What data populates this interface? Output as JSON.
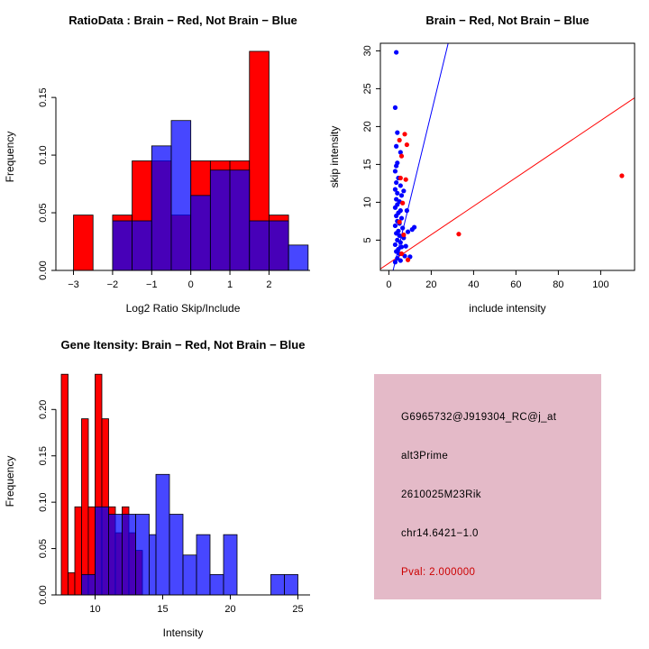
{
  "figure": {
    "background": "#ffffff"
  },
  "colors": {
    "brain_red": "#ff0000",
    "not_brain_blue": "#0000ff",
    "overlap_purple": "#66009f",
    "axis": "#000000"
  },
  "chart_data": [
    {
      "id": "ratio_hist",
      "type": "bar",
      "title": "RatioData : Brain − Red, Not Brain − Blue",
      "xlabel": "Log2 Ratio Skip/Include",
      "ylabel": "Frequency",
      "xlim": [
        -3.45,
        3.05
      ],
      "ylim": [
        0,
        0.197
      ],
      "x_ticks": [
        -3,
        -2,
        -1,
        0,
        1,
        2
      ],
      "x_tick_labels": [
        "−3",
        "−2",
        "−1",
        "0",
        "1",
        "2"
      ],
      "y_ticks": [
        0,
        0.05,
        0.1,
        0.15
      ],
      "y_tick_labels": [
        "0.00",
        "0.05",
        "0.10",
        "0.15"
      ],
      "bin_width": 0.5,
      "series": [
        {
          "name": "Brain (red)",
          "slug": "brain-red-bars",
          "color": "#ff0000",
          "opacity": 1,
          "bins": [
            [
              -3,
              0.048
            ],
            [
              -2,
              0.048
            ],
            [
              -1.5,
              0.095
            ],
            [
              -1,
              0.095
            ],
            [
              -0.5,
              0.048
            ],
            [
              0,
              0.095
            ],
            [
              0.5,
              0.095
            ],
            [
              1,
              0.095
            ],
            [
              1.5,
              0.19
            ],
            [
              2,
              0.048
            ]
          ]
        },
        {
          "name": "Not Brain (blue)",
          "slug": "not-brain-blue-bars",
          "color": "#0000ff",
          "opacity": 0.72,
          "bins": [
            [
              -2,
              0.043
            ],
            [
              -1.5,
              0.043
            ],
            [
              -1,
              0.108
            ],
            [
              -0.5,
              0.13
            ],
            [
              0,
              0.065
            ],
            [
              0.5,
              0.087
            ],
            [
              1,
              0.087
            ],
            [
              1.5,
              0.043
            ],
            [
              2,
              0.043
            ],
            [
              2.5,
              0.022
            ]
          ]
        }
      ]
    },
    {
      "id": "intensity_scatter",
      "type": "scatter",
      "title": "Brain − Red, Not Brain − Blue",
      "xlabel": "include intensity",
      "ylabel": "skip intensity",
      "xlim": [
        -4,
        116
      ],
      "ylim": [
        1,
        31
      ],
      "x_ticks": [
        0,
        20,
        40,
        60,
        80,
        100
      ],
      "x_tick_labels": [
        "0",
        "20",
        "40",
        "60",
        "80",
        "100"
      ],
      "y_ticks": [
        5,
        10,
        15,
        20,
        25,
        30
      ],
      "y_tick_labels": [
        "5",
        "10",
        "15",
        "20",
        "25",
        "30"
      ],
      "lines": [
        {
          "name": "blue-fit-line",
          "color": "#0000ff",
          "from": [
            2,
            1
          ],
          "to": [
            28,
            31
          ]
        },
        {
          "name": "red-fit-line",
          "color": "#ff0000",
          "from": [
            -4,
            1.2
          ],
          "to": [
            116,
            23.8
          ]
        }
      ],
      "series": [
        {
          "name": "Not Brain (blue)",
          "slug": "not-brain-blue-points",
          "color": "#0000ff",
          "points": [
            [
              3.5,
              29.8
            ],
            [
              3,
              22.5
            ],
            [
              4,
              19.2
            ],
            [
              3.5,
              17.4
            ],
            [
              5.5,
              16.6
            ],
            [
              4,
              15.2
            ],
            [
              3.5,
              14.8
            ],
            [
              3,
              14.1
            ],
            [
              4.5,
              13.2
            ],
            [
              3.5,
              12.6
            ],
            [
              5.5,
              12.2
            ],
            [
              3,
              11.7
            ],
            [
              4,
              11.2
            ],
            [
              6,
              10.9
            ],
            [
              3.5,
              10.4
            ],
            [
              5,
              10.1
            ],
            [
              4,
              9.7
            ],
            [
              3,
              9.3
            ],
            [
              5.5,
              8.9
            ],
            [
              4.5,
              8.6
            ],
            [
              3.5,
              8.2
            ],
            [
              6,
              7.9
            ],
            [
              4,
              7.5
            ],
            [
              5,
              7.2
            ],
            [
              3,
              6.9
            ],
            [
              6.5,
              6.6
            ],
            [
              4.5,
              6.2
            ],
            [
              3.5,
              5.9
            ],
            [
              5,
              5.6
            ],
            [
              7,
              5.3
            ],
            [
              4,
              5
            ],
            [
              5.5,
              4.7
            ],
            [
              3,
              4.4
            ],
            [
              6,
              4.1
            ],
            [
              4.5,
              3.8
            ],
            [
              3.5,
              3.5
            ],
            [
              5,
              3.2
            ],
            [
              7.5,
              2.9
            ],
            [
              4,
              2.6
            ],
            [
              5.5,
              2.3
            ],
            [
              3,
              2.1
            ],
            [
              9,
              6.1
            ],
            [
              11,
              6.4
            ],
            [
              8,
              4.2
            ],
            [
              10,
              2.8
            ],
            [
              12,
              6.7
            ],
            [
              8.5,
              8.9
            ],
            [
              7,
              11.5
            ]
          ]
        },
        {
          "name": "Brain (red)",
          "slug": "brain-red-points",
          "color": "#ff0000",
          "points": [
            [
              5,
              18.2
            ],
            [
              7.5,
              19
            ],
            [
              8.5,
              17.6
            ],
            [
              6,
              16.1
            ],
            [
              5.5,
              13.2
            ],
            [
              8,
              13
            ],
            [
              6.5,
              9.9
            ],
            [
              5,
              7.4
            ],
            [
              7,
              5.7
            ],
            [
              6,
              3.2
            ],
            [
              9,
              2.4
            ],
            [
              33,
              5.8
            ],
            [
              110,
              13.5
            ]
          ]
        }
      ]
    },
    {
      "id": "gene_intensity_hist",
      "type": "bar",
      "title": "Gene Itensity: Brain − Red, Not Brain − Blue",
      "xlabel": "Intensity",
      "ylabel": "Frequency",
      "xlim": [
        7.1,
        25.9
      ],
      "ylim": [
        0,
        0.245
      ],
      "x_ticks": [
        10,
        15,
        20,
        25
      ],
      "x_tick_labels": [
        "10",
        "15",
        "20",
        "25"
      ],
      "y_ticks": [
        0,
        0.05,
        0.1,
        0.15,
        0.2
      ],
      "y_tick_labels": [
        "0.00",
        "0.05",
        "0.10",
        "0.15",
        "0.20"
      ],
      "bin_width": 0.5,
      "series": [
        {
          "name": "Brain (red)",
          "slug": "brain-red-bars",
          "color": "#ff0000",
          "opacity": 1,
          "bins": [
            [
              7.5,
              0.238
            ],
            [
              8,
              0.024
            ],
            [
              8.5,
              0.095
            ],
            [
              9,
              0.19
            ],
            [
              9.5,
              0.095
            ],
            [
              10,
              0.238
            ],
            [
              10.5,
              0.19
            ],
            [
              11,
              0.095
            ],
            [
              11.5,
              0.067
            ],
            [
              12,
              0.095
            ],
            [
              12.5,
              0.067
            ],
            [
              13,
              0.048
            ]
          ]
        },
        {
          "name": "Not Brain (blue)",
          "slug": "not-brain-blue-bars",
          "color": "#0000ff",
          "opacity": 0.72,
          "bin_width": 1,
          "bins": [
            [
              9,
              0.022
            ],
            [
              10,
              0.095
            ],
            [
              11,
              0.087
            ],
            [
              12,
              0.087
            ],
            [
              13,
              0.087
            ],
            [
              14,
              0.065,
              0.5
            ],
            [
              14.5,
              0.13
            ],
            [
              15.5,
              0.087
            ],
            [
              16.5,
              0.043
            ],
            [
              17.5,
              0.065
            ],
            [
              18.5,
              0.022
            ],
            [
              19.5,
              0.065
            ],
            [
              23,
              0.022
            ],
            [
              24,
              0.022
            ]
          ]
        }
      ]
    }
  ],
  "info_panel": {
    "bg": "#e4bac8",
    "lines": [
      {
        "text": "G6965732@J919304_RC@j_at",
        "color": "#000000"
      },
      {
        "text": "alt3Prime",
        "color": "#000000"
      },
      {
        "text": "2610025M23Rik",
        "color": "#000000"
      },
      {
        "text": "chr14.6421−1.0",
        "color": "#000000"
      },
      {
        "text": "Pval: 2.000000",
        "color": "#cc0000"
      }
    ]
  }
}
